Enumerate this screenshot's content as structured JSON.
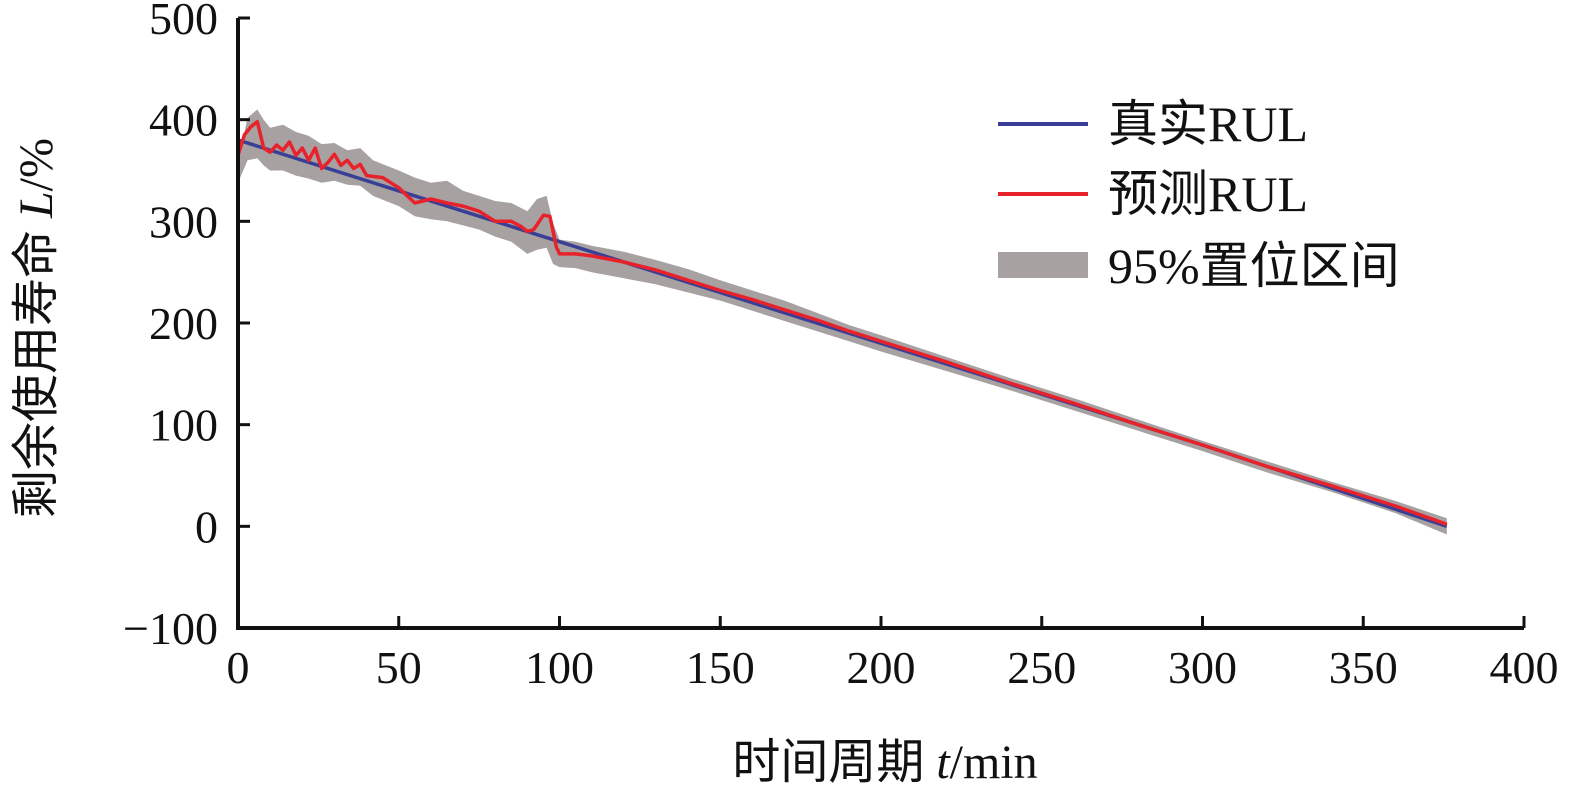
{
  "chart_data": {
    "type": "line",
    "title": "",
    "xlabel": {
      "main": "时间周期 ",
      "var": "t",
      "unit": "/min"
    },
    "ylabel": {
      "main": "剩余使用寿命 ",
      "var": "L",
      "unit": "/%"
    },
    "xlim": [
      0,
      400
    ],
    "ylim": [
      -100,
      500
    ],
    "x_ticks": [
      0,
      50,
      100,
      150,
      200,
      250,
      300,
      350,
      400
    ],
    "y_ticks": [
      -100,
      0,
      100,
      200,
      300,
      400,
      500
    ],
    "y_tick_labels": [
      "−100",
      "0",
      "100",
      "200",
      "300",
      "400",
      "500"
    ],
    "grid": false,
    "legend_position": "top-right",
    "series": [
      {
        "name": "真实RUL",
        "kind": "line",
        "color": "#3a3f96",
        "x": [
          0,
          100,
          200,
          300,
          376
        ],
        "y": [
          380,
          280,
          180,
          80,
          0
        ]
      },
      {
        "name": "预测RUL",
        "kind": "line",
        "color": "#e8222b",
        "x": [
          0,
          2,
          4,
          6,
          8,
          10,
          12,
          14,
          16,
          18,
          20,
          22,
          24,
          26,
          28,
          30,
          32,
          34,
          36,
          38,
          40,
          45,
          50,
          55,
          60,
          65,
          70,
          75,
          80,
          85,
          88,
          90,
          92,
          95,
          97,
          99,
          100,
          105,
          110,
          120,
          130,
          140,
          150,
          160,
          170,
          180,
          190,
          200,
          220,
          240,
          260,
          280,
          300,
          320,
          340,
          360,
          376
        ],
        "y": [
          365,
          385,
          393,
          398,
          372,
          368,
          375,
          370,
          378,
          365,
          372,
          360,
          372,
          352,
          358,
          366,
          355,
          360,
          352,
          356,
          345,
          343,
          333,
          318,
          322,
          318,
          315,
          310,
          300,
          300,
          295,
          290,
          292,
          306,
          305,
          275,
          268,
          268,
          266,
          260,
          252,
          242,
          232,
          223,
          213,
          203,
          192,
          182,
          162,
          141,
          121,
          100,
          80,
          59,
          40,
          20,
          2
        ]
      },
      {
        "name": "95%置位区间",
        "kind": "band",
        "color": "#a7a1a1",
        "x": [
          0,
          3,
          6,
          8,
          10,
          14,
          18,
          22,
          26,
          30,
          34,
          38,
          42,
          46,
          50,
          55,
          60,
          65,
          70,
          75,
          80,
          85,
          90,
          93,
          96,
          98,
          100,
          105,
          110,
          120,
          130,
          140,
          150,
          160,
          170,
          180,
          190,
          200,
          220,
          240,
          260,
          280,
          300,
          320,
          340,
          360,
          376
        ],
        "upper": [
          358,
          402,
          410,
          400,
          392,
          395,
          388,
          384,
          376,
          377,
          370,
          372,
          360,
          355,
          350,
          343,
          338,
          340,
          330,
          325,
          320,
          318,
          310,
          322,
          325,
          298,
          282,
          280,
          276,
          270,
          262,
          253,
          242,
          232,
          222,
          210,
          198,
          188,
          167,
          146,
          126,
          105,
          84,
          64,
          44,
          25,
          8
        ],
        "lower": [
          338,
          360,
          362,
          355,
          350,
          350,
          345,
          342,
          338,
          340,
          336,
          335,
          325,
          320,
          315,
          305,
          302,
          300,
          296,
          292,
          285,
          280,
          268,
          272,
          274,
          258,
          255,
          254,
          250,
          244,
          238,
          230,
          222,
          212,
          202,
          192,
          182,
          172,
          153,
          134,
          114,
          94,
          74,
          53,
          34,
          13,
          -8
        ]
      }
    ]
  }
}
